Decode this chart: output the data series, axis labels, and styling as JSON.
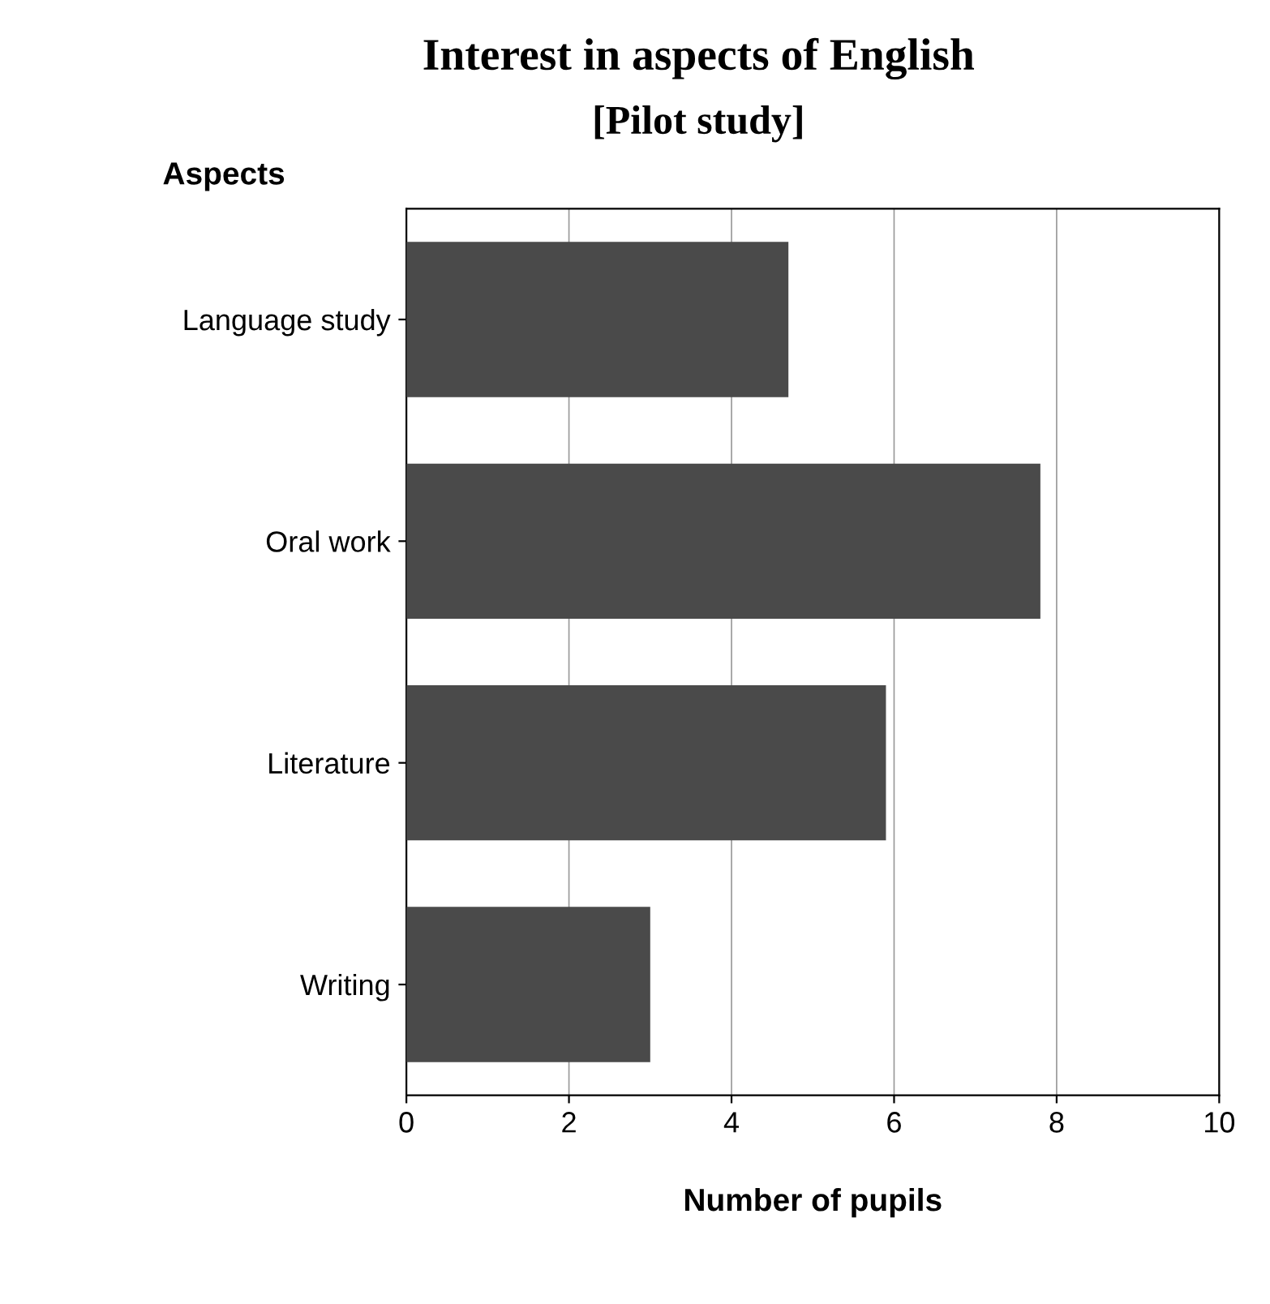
{
  "chart_data": {
    "type": "bar",
    "orientation": "horizontal",
    "title": "Interest in aspects of English",
    "subtitle": "[Pilot study]",
    "ylabel": "Aspects",
    "xlabel": "Number of pupils",
    "categories": [
      "Language study",
      "Oral work",
      "Literature",
      "Writing"
    ],
    "values": [
      4.7,
      7.8,
      5.9,
      3.0
    ],
    "color": "#4a4a4a",
    "xlim": [
      0,
      10
    ],
    "xticks": [
      0,
      2,
      4,
      6,
      8,
      10
    ],
    "grid": "x",
    "legend": false
  }
}
